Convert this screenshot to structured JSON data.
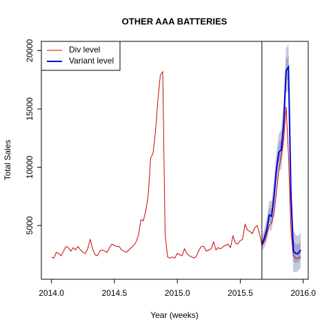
{
  "chart_data": {
    "type": "line",
    "title": "OTHER AAA BATTERIES",
    "x_label": "Year (weeks)",
    "y_label": "Total Sales",
    "xlim": [
      2013.92,
      2016.04
    ],
    "ylim": [
      385,
      20800
    ],
    "xticks": [
      {
        "value": 2014,
        "label": "2014.0"
      },
      {
        "value": 2014.5,
        "label": "2014.5"
      },
      {
        "value": 2015,
        "label": "2015.0"
      },
      {
        "value": 2015.5,
        "label": "2015.5"
      },
      {
        "value": 2016,
        "label": "2016.0"
      }
    ],
    "yticks": [
      5000,
      10000,
      15000,
      20000
    ],
    "vline": 2015.672,
    "legend": "top-left",
    "series": [
      {
        "name": "Div level",
        "color": "#cc0000",
        "x": [
          2014.0,
          2014.019,
          2014.038,
          2014.058,
          2014.077,
          2014.096,
          2014.115,
          2014.135,
          2014.154,
          2014.173,
          2014.192,
          2014.211,
          2014.231,
          2014.25,
          2014.269,
          2014.288,
          2014.308,
          2014.327,
          2014.346,
          2014.365,
          2014.384,
          2014.404,
          2014.423,
          2014.442,
          2014.461,
          2014.481,
          2014.5,
          2014.519,
          2014.538,
          2014.557,
          2014.577,
          2014.596,
          2014.615,
          2014.634,
          2014.653,
          2014.673,
          2014.692,
          2014.711,
          2014.73,
          2014.75,
          2014.769,
          2014.788,
          2014.807,
          2014.826,
          2014.846,
          2014.865,
          2014.884,
          2014.903,
          2014.923,
          2014.942,
          2014.961,
          2014.98,
          2014.999,
          2015.019,
          2015.038,
          2015.057,
          2015.076,
          2015.096,
          2015.115,
          2015.134,
          2015.153,
          2015.172,
          2015.192,
          2015.211,
          2015.23,
          2015.249,
          2015.269,
          2015.288,
          2015.307,
          2015.326,
          2015.345,
          2015.365,
          2015.384,
          2015.403,
          2015.422,
          2015.442,
          2015.461,
          2015.48,
          2015.499,
          2015.518,
          2015.538,
          2015.557,
          2015.576,
          2015.595,
          2015.614,
          2015.634,
          2015.653,
          2015.672,
          2015.691,
          2015.71,
          2015.73,
          2015.749,
          2015.768,
          2015.787,
          2015.807,
          2015.826,
          2015.845,
          2015.864,
          2015.883,
          2015.903,
          2015.922,
          2015.941,
          2015.96,
          2015.98
        ],
        "values": [
          2300,
          2200,
          2700,
          2600,
          2400,
          2800,
          3200,
          3100,
          2800,
          3100,
          2900,
          3200,
          2900,
          2700,
          2600,
          3000,
          3800,
          3000,
          2500,
          2400,
          2800,
          2900,
          2800,
          2700,
          3100,
          3400,
          3300,
          3200,
          3200,
          2900,
          2800,
          2700,
          2900,
          3100,
          3300,
          3600,
          4200,
          5500,
          5400,
          6300,
          7600,
          10800,
          11200,
          13000,
          15800,
          17900,
          18200,
          4200,
          2300,
          2200,
          2300,
          2200,
          2600,
          2500,
          2400,
          3000,
          2600,
          2400,
          2300,
          2200,
          2400,
          2900,
          3200,
          3200,
          2800,
          2900,
          3000,
          3600,
          2900,
          3100,
          3000,
          3200,
          3300,
          3400,
          3100,
          4100,
          3500,
          3400,
          3700,
          3800,
          5100,
          4600,
          4500,
          4300,
          4800,
          5000,
          4300,
          3300,
          3600,
          4200,
          5000,
          5200,
          6000,
          7800,
          9800,
          11000,
          12300,
          15200,
          11000,
          4500,
          2400,
          2200,
          2200,
          2300
        ]
      },
      {
        "name": "Variant level",
        "color": "#0000dd",
        "x": [
          2015.672,
          2015.691,
          2015.71,
          2015.73,
          2015.749,
          2015.768,
          2015.787,
          2015.807,
          2015.826,
          2015.845,
          2015.864,
          2015.883,
          2015.903,
          2015.922,
          2015.941,
          2015.96,
          2015.98
        ],
        "values": [
          3400,
          3900,
          4600,
          5900,
          5800,
          7500,
          9800,
          11300,
          11500,
          13800,
          18300,
          18600,
          7500,
          2800,
          2600,
          2600,
          2900
        ],
        "band_outer_color": "#c8c8de",
        "band_outer_lower": [
          2800,
          3100,
          3600,
          4700,
          4500,
          6100,
          8300,
          9700,
          9800,
          12000,
          16400,
          16600,
          5500,
          1000,
          1000,
          1100,
          1400
        ],
        "band_outer_upper": [
          4000,
          4700,
          5600,
          7100,
          7100,
          8900,
          11300,
          12900,
          13200,
          15600,
          20200,
          20600,
          9500,
          4600,
          4200,
          4100,
          4400
        ],
        "band_inner_color": "#a4a6cc",
        "band_inner_lower": [
          3100,
          3500,
          4100,
          5300,
          5150,
          6800,
          9050,
          10500,
          10650,
          12900,
          17350,
          17600,
          6500,
          1900,
          1800,
          1850,
          2150
        ],
        "band_inner_upper": [
          3700,
          4300,
          5100,
          6500,
          6450,
          8200,
          10550,
          12100,
          12350,
          14700,
          19250,
          19600,
          8500,
          3700,
          3400,
          3350,
          3650
        ]
      }
    ]
  }
}
